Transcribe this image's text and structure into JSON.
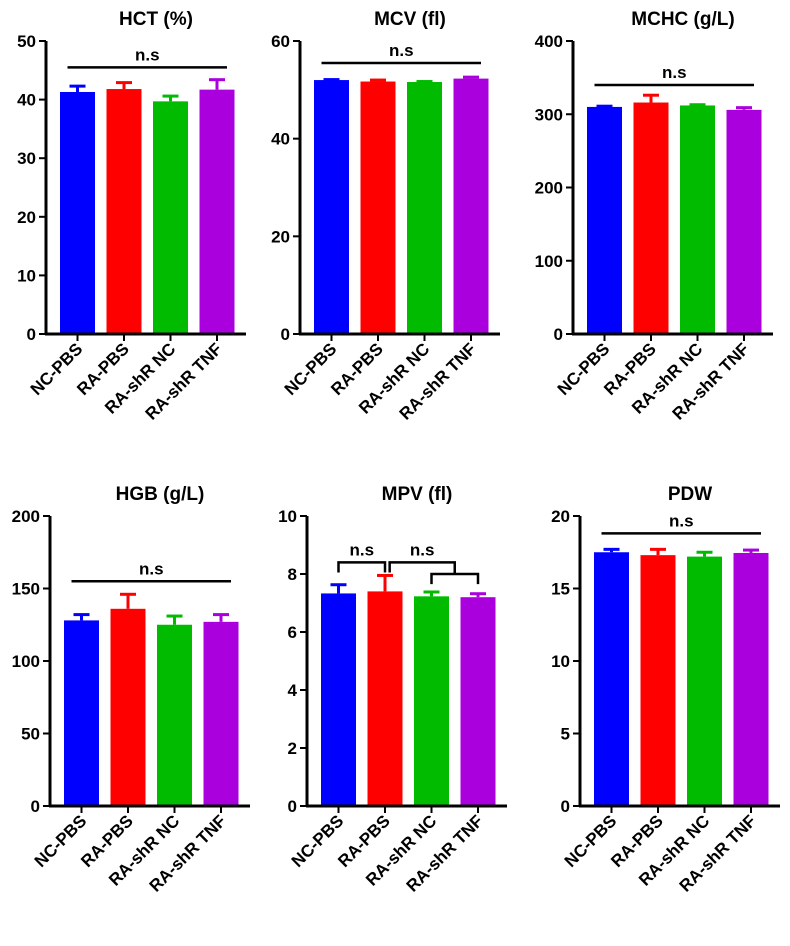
{
  "colors": [
    "#0000ff",
    "#ff0000",
    "#00bb00",
    "#aa00dd"
  ],
  "categories": [
    "NC-PBS",
    "RA-PBS",
    "RA-shR NC",
    "RA-shR TNF"
  ],
  "chart_data": [
    {
      "type": "bar",
      "title": "HCT (%)",
      "ylim": [
        0,
        50
      ],
      "yticks": [
        0,
        10,
        20,
        30,
        40,
        50
      ],
      "values": [
        41.3,
        41.8,
        39.7,
        41.7
      ],
      "errors": [
        1.0,
        1.1,
        0.9,
        1.7
      ],
      "significance": [
        {
          "label": "n.s",
          "type": "line",
          "from": 0,
          "to": 3,
          "y": 45.5
        }
      ]
    },
    {
      "type": "bar",
      "title": "MCV (fl)",
      "ylim": [
        0,
        60
      ],
      "yticks": [
        0,
        20,
        40,
        60
      ],
      "values": [
        52.0,
        51.7,
        51.6,
        52.3
      ],
      "errors": [
        0.1,
        0.3,
        0.1,
        0.3
      ],
      "significance": [
        {
          "label": "n.s",
          "type": "line",
          "from": 0,
          "to": 3,
          "y": 55.5
        }
      ]
    },
    {
      "type": "bar",
      "title": "MCHC (g/L)",
      "ylim": [
        0,
        400
      ],
      "yticks": [
        0,
        100,
        200,
        300,
        400
      ],
      "values": [
        310,
        316,
        312,
        306
      ],
      "errors": [
        1,
        10,
        1,
        3
      ],
      "significance": [
        {
          "label": "n.s",
          "type": "line",
          "from": 0,
          "to": 3,
          "y": 340
        }
      ]
    },
    {
      "type": "bar",
      "title": "HGB (g/L)",
      "ylim": [
        0,
        200
      ],
      "yticks": [
        0,
        50,
        100,
        150,
        200
      ],
      "values": [
        128,
        136,
        125,
        127
      ],
      "errors": [
        4,
        10,
        6,
        5
      ],
      "significance": [
        {
          "label": "n.s",
          "type": "line",
          "from": 0,
          "to": 3,
          "y": 155
        }
      ]
    },
    {
      "type": "bar",
      "title": "MPV (fl)",
      "ylim": [
        0,
        10
      ],
      "yticks": [
        0,
        2,
        4,
        6,
        8,
        10
      ],
      "values": [
        7.33,
        7.4,
        7.23,
        7.2
      ],
      "errors": [
        0.3,
        0.55,
        0.15,
        0.12
      ],
      "significance": [
        {
          "label": "n.s",
          "type": "bracket",
          "from": 0,
          "to": 1,
          "y": 8.4,
          "drop": 0.35
        },
        {
          "label": "n.s",
          "type": "bracket",
          "from": 1.1,
          "to": 2.5,
          "y": 8.4,
          "drop": 0.35
        },
        {
          "label": "",
          "type": "bracket",
          "from": 2,
          "to": 3,
          "y": 8.0,
          "drop": 0.35
        }
      ]
    },
    {
      "type": "bar",
      "title": "PDW",
      "ylim": [
        0,
        20
      ],
      "yticks": [
        0,
        5,
        10,
        15,
        20
      ],
      "values": [
        17.5,
        17.3,
        17.2,
        17.45
      ],
      "errors": [
        0.2,
        0.4,
        0.3,
        0.2
      ],
      "significance": [
        {
          "label": "n.s",
          "type": "line",
          "from": 0,
          "to": 3,
          "y": 18.8
        }
      ]
    }
  ]
}
